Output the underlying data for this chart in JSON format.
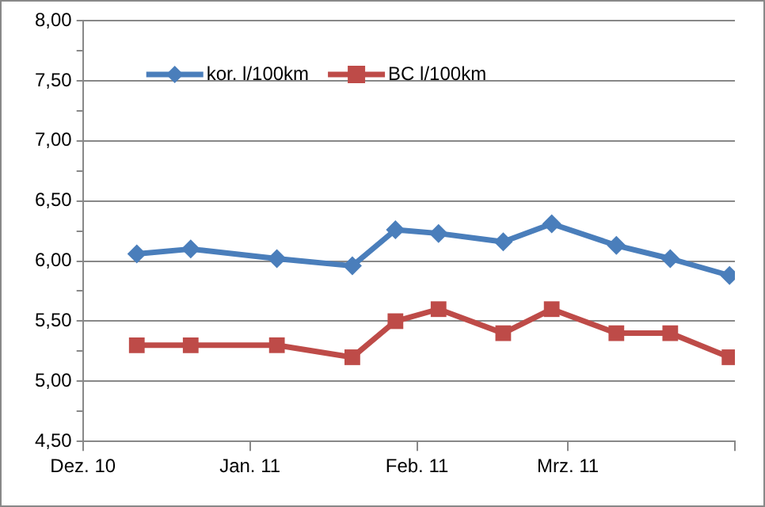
{
  "chart_data": {
    "type": "line",
    "x": [
      "2010-12-11",
      "2010-12-21",
      "2011-01-06",
      "2011-01-20",
      "2011-01-28",
      "2011-02-05",
      "2011-02-17",
      "2011-02-26",
      "2011-03-10",
      "2011-03-20",
      "2011-03-31"
    ],
    "series": [
      {
        "name": "kor. l/100km",
        "color": "#4a7ebb",
        "marker": "diamond",
        "values": [
          6.06,
          6.1,
          6.02,
          5.96,
          6.26,
          6.23,
          6.16,
          6.31,
          6.13,
          6.02,
          5.88
        ]
      },
      {
        "name": "BC l/100km",
        "color": "#be4b48",
        "marker": "square",
        "values": [
          5.3,
          5.3,
          5.3,
          5.2,
          5.5,
          5.6,
          5.4,
          5.6,
          5.4,
          5.4,
          5.2
        ]
      }
    ],
    "xlim": [
      "2010-12-01",
      "2011-04-01"
    ],
    "xticks": [
      {
        "value": "2010-12-01",
        "label": "Dez. 10"
      },
      {
        "value": "2011-01-01",
        "label": "Jan. 11"
      },
      {
        "value": "2011-02-01",
        "label": "Feb. 11"
      },
      {
        "value": "2011-03-01",
        "label": "Mrz. 11"
      },
      {
        "value": "2011-04-01",
        "label": null
      }
    ],
    "ylim": [
      4.5,
      8.0
    ],
    "yticks": [
      {
        "value": 4.5,
        "label": "4,50"
      },
      {
        "value": 4.75,
        "label": null
      },
      {
        "value": 5.0,
        "label": "5,00"
      },
      {
        "value": 5.25,
        "label": null
      },
      {
        "value": 5.5,
        "label": "5,50"
      },
      {
        "value": 5.75,
        "label": null
      },
      {
        "value": 6.0,
        "label": "6,00"
      },
      {
        "value": 6.25,
        "label": null
      },
      {
        "value": 6.5,
        "label": "6,50"
      },
      {
        "value": 6.75,
        "label": null
      },
      {
        "value": 7.0,
        "label": "7,00"
      },
      {
        "value": 7.25,
        "label": null
      },
      {
        "value": 7.5,
        "label": "7,50"
      },
      {
        "value": 7.75,
        "label": null
      },
      {
        "value": 8.0,
        "label": "8,00"
      }
    ],
    "grid": "y",
    "legend": "top left",
    "line_style": "solid"
  }
}
